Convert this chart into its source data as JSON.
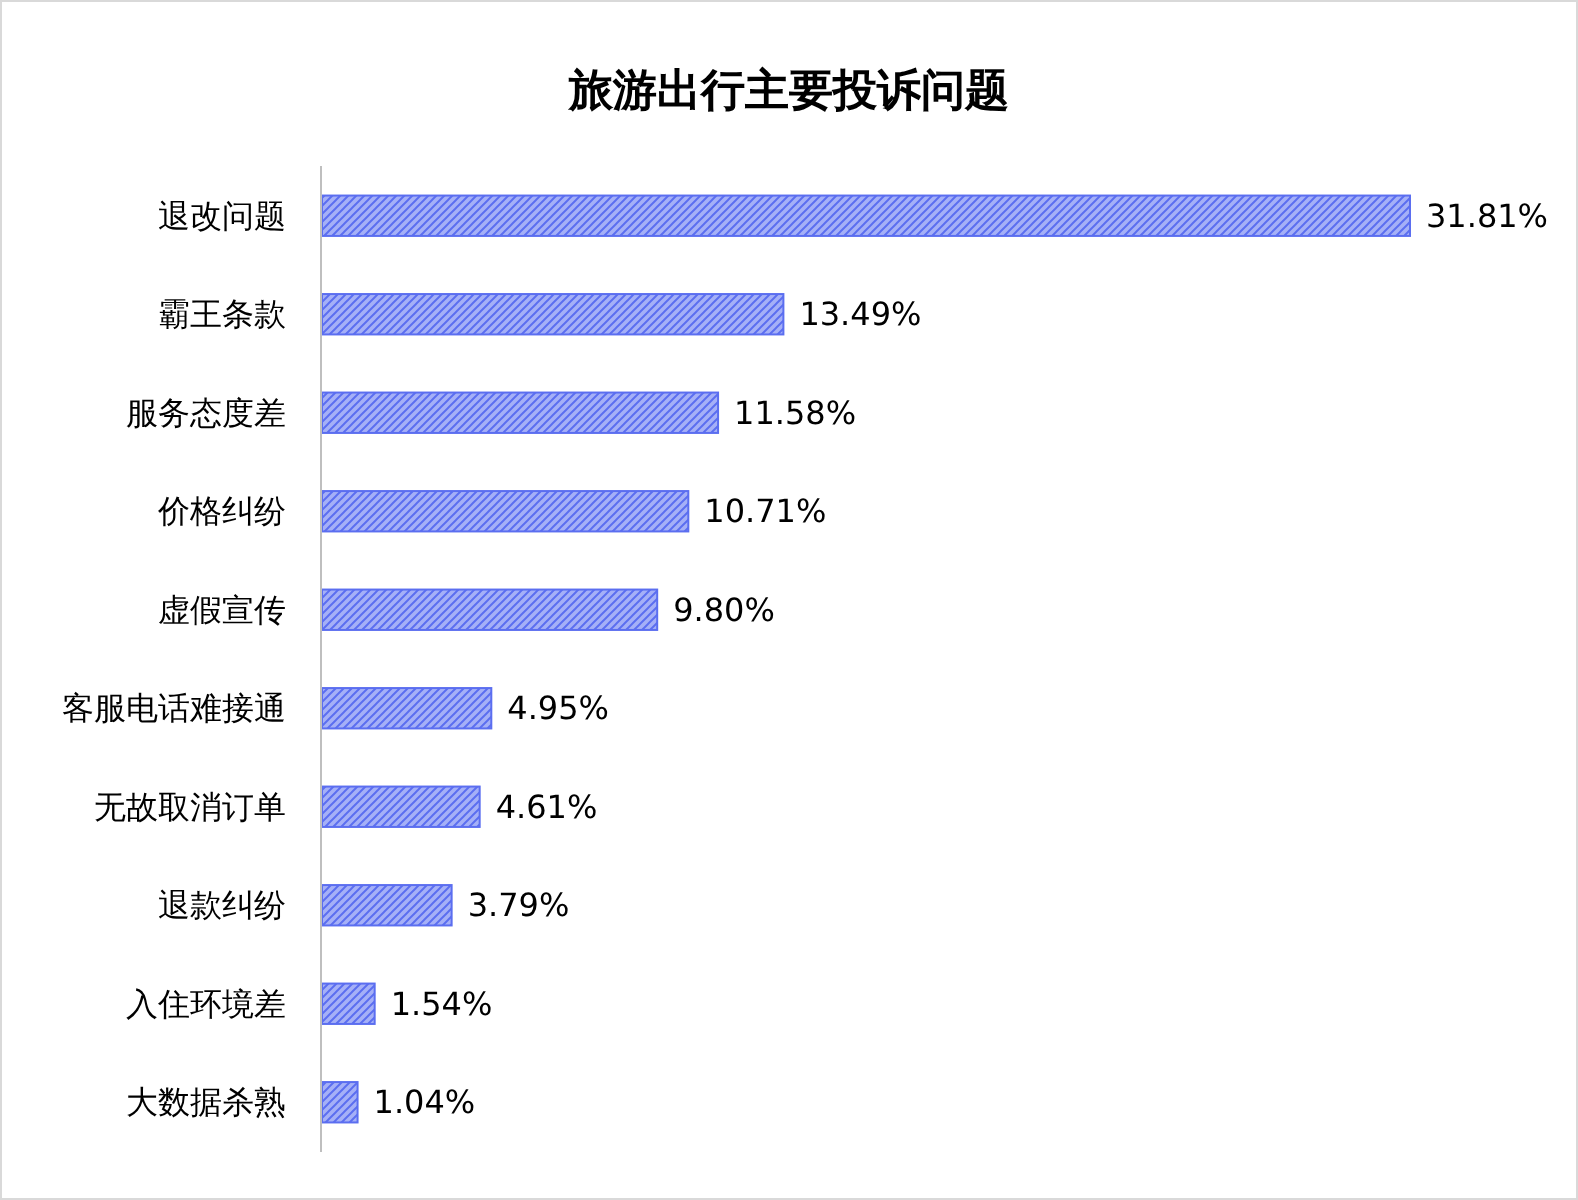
{
  "chart_data": {
    "type": "bar",
    "orientation": "horizontal",
    "title": "旅游出行主要投诉问题",
    "categories": [
      "退改问题",
      "霸王条款",
      "服务态度差",
      "价格纠纷",
      "虚假宣传",
      "客服电话难接通",
      "无故取消订单",
      "退款纠纷",
      "入住环境差",
      "大数据杀熟"
    ],
    "values": [
      31.81,
      13.49,
      11.58,
      10.71,
      9.8,
      4.95,
      4.61,
      3.79,
      1.54,
      1.04
    ],
    "value_labels": [
      "31.81%",
      "13.49%",
      "11.58%",
      "10.71%",
      "9.80%",
      "4.95%",
      "4.61%",
      "3.79%",
      "1.54%",
      "1.04%"
    ],
    "color": "#5b6ef0"
  }
}
